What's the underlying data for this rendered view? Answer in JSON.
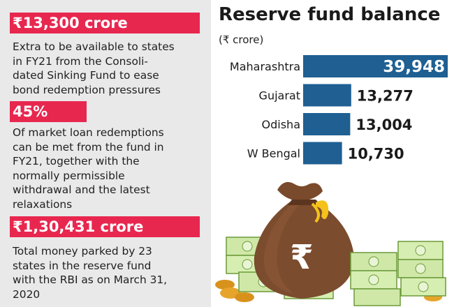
{
  "stats": [
    {
      "value": "₹13,300 crore",
      "description_lines": [
        "Extra to be available to states",
        "in FY21 from the Consoli-",
        "dated Sinking Fund to ease",
        "bond redemption pressures"
      ]
    },
    {
      "value": "45%",
      "description_lines": [
        "Of market loan redemptions",
        "can be met from the fund in",
        "FY21, together with the",
        "normally permissible",
        "withdrawal and the latest",
        "relaxations"
      ]
    },
    {
      "value": "₹1,30,431 crore",
      "description_lines": [
        "Total money parked by 23",
        "states in the reserve fund",
        "with the RBI as on March 31,",
        "2020"
      ]
    }
  ],
  "colors": {
    "badge": "#e8274f",
    "bar": "#1f5f92",
    "panel": "#e9e9e9"
  },
  "illustration": {
    "icon": "money-bag-rupee-icon",
    "symbol": "₹"
  },
  "chart_data": {
    "type": "bar",
    "orientation": "horizontal",
    "title": "Reserve fund balance",
    "unit": "(₹ crore)",
    "categories": [
      "Maharashtra",
      "Gujarat",
      "Odisha",
      "W Bengal"
    ],
    "values": [
      39948,
      13277,
      13004,
      10730
    ],
    "value_labels": [
      "39,948",
      "13,277",
      "13,004",
      "10,730"
    ],
    "xlim": [
      0,
      39948
    ],
    "grid": false,
    "legend": "none"
  }
}
